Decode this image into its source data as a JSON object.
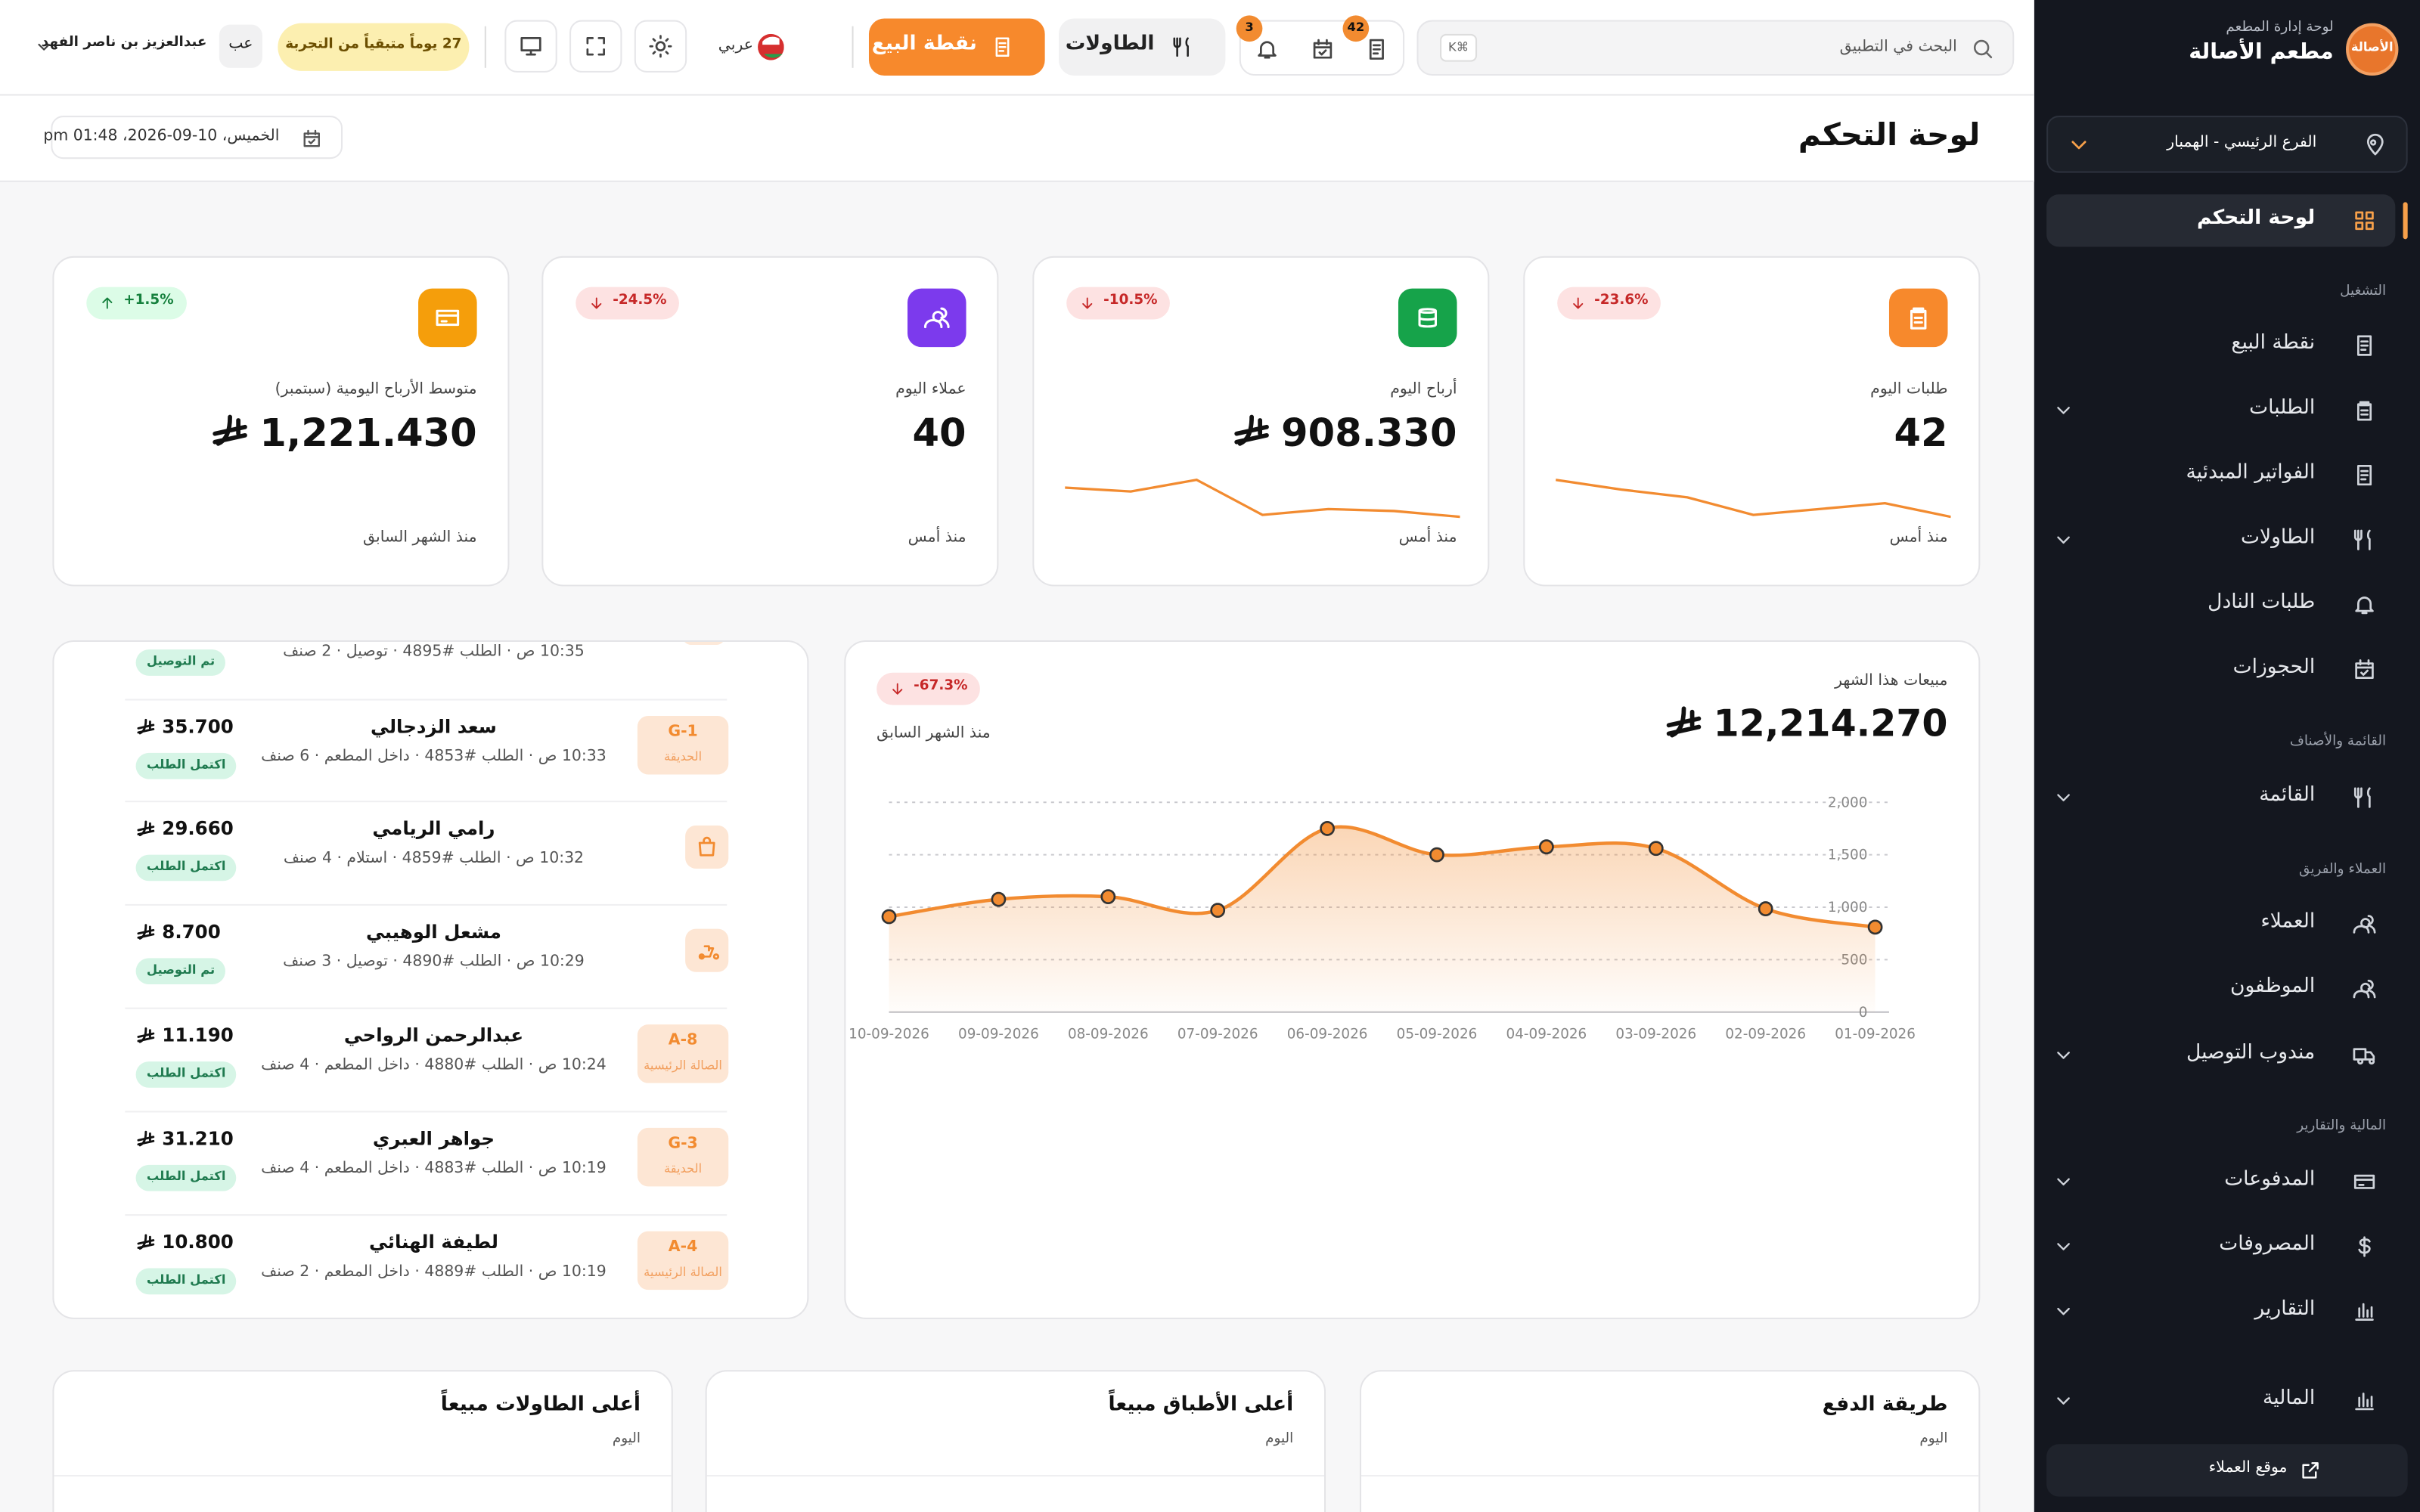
{
  "sidebar": {
    "logo": "الأصالة",
    "subtitle": "لوحة إدارة المطعم",
    "name": "مطعم الأصالة",
    "branch": "الفرع الرئيسي - الهمبار",
    "active": "لوحة التحكم",
    "sections": [
      {
        "label": "التشغيل",
        "items": [
          "نقطة البيع",
          "الطلبات",
          "الفواتير المبدئية",
          "الطاولات",
          "طلبات النادل",
          "الحجوزات"
        ]
      },
      {
        "label": "القائمة والأصناف",
        "items": [
          "القائمة"
        ]
      },
      {
        "label": "العملاء والفريق",
        "items": [
          "العملاء",
          "الموظفون",
          "مندوب التوصيل"
        ]
      },
      {
        "label": "المالية والتقارير",
        "items": [
          "المدفوعات",
          "المصروفات",
          "التقارير",
          "المالية"
        ]
      }
    ],
    "footer": "موقع العملاء"
  },
  "topbar": {
    "search": "البحث في التطبيق",
    "shortcut": "K⌘",
    "badges": [
      42,
      3
    ],
    "tables_button": "الطاولات",
    "pos_button": "نقطة البيع",
    "language": "عربي",
    "trial": "27 يوماً متبقياً من التجربة",
    "avatar": "عب",
    "user": "عبدالعزيز بن ناصر الفهد"
  },
  "header": {
    "title": "لوحة التحكم",
    "date": "الخميس، 10-09-2026، 01:48 pm"
  },
  "stats": [
    {
      "label": "طلبات اليوم",
      "value": "42",
      "change": "-23.6%",
      "note": "منذ أمس",
      "trend": [
        28,
        23,
        19,
        10,
        13,
        16,
        9
      ]
    },
    {
      "label": "أرباح اليوم",
      "value": "908.330",
      "change": "-10.5%",
      "note": "منذ أمس",
      "trend": [
        23,
        21,
        27,
        9,
        12,
        11,
        8
      ]
    },
    {
      "label": "عملاء اليوم",
      "value": "40",
      "change": "-24.5%",
      "note": "منذ أمس"
    },
    {
      "label": "متوسط الأرباح اليومية (سبتمبر)",
      "value": "1,221.430",
      "change": "+1.5%",
      "note": "منذ الشهر السابق"
    }
  ],
  "chart_data": {
    "type": "area",
    "title": "مبيعات هذا الشهر",
    "value": "12,214.270",
    "change": "-67.3%",
    "note": "منذ الشهر السابق",
    "categories": [
      "01-09-2026",
      "02-09-2026",
      "03-09-2026",
      "04-09-2026",
      "05-09-2026",
      "06-09-2026",
      "07-09-2026",
      "08-09-2026",
      "09-09-2026",
      "10-09-2026"
    ],
    "values": [
      810,
      985,
      1560,
      1575,
      1500,
      1750,
      970,
      1100,
      1075,
      910
    ],
    "color": "#f28b30",
    "ylim": [
      0,
      2000
    ],
    "yticks": [
      0,
      500,
      {
        "value": 1000,
        "label": "1,000"
      },
      {
        "value": 1500,
        "label": "1,500"
      },
      {
        "value": 2000,
        "label": "2,000"
      }
    ],
    "grid": true
  },
  "orders": {
    "partial": {
      "meta": "10:35 ص · الطلب #4895 · توصيل · 2 صنف",
      "status": "تم التوصيل"
    },
    "rows": [
      {
        "name": "سعد الزدجالي",
        "meta": "10:33 ص · الطلب #4853 · داخل المطعم · 6 صنف",
        "amount": "35.700",
        "status": "اكتمل الطلب",
        "table": "G-1",
        "area": "الحديقة"
      },
      {
        "name": "رامي الريامي",
        "meta": "10:32 ص · الطلب #4859 · استلام · 4 صنف",
        "amount": "29.660",
        "status": "اكتمل الطلب"
      },
      {
        "name": "مشعل الوهيبي",
        "meta": "10:29 ص · الطلب #4890 · توصيل · 3 صنف",
        "amount": "8.700",
        "status": "تم التوصيل"
      },
      {
        "name": "عبدالرحمن الرواحي",
        "meta": "10:24 ص · الطلب #4880 · داخل المطعم · 4 صنف",
        "amount": "11.190",
        "status": "اكتمل الطلب",
        "table": "A-8",
        "area": "الصالة الرئيسية"
      },
      {
        "name": "جواهر العبري",
        "meta": "10:19 ص · الطلب #4883 · داخل المطعم · 4 صنف",
        "amount": "31.210",
        "status": "اكتمل الطلب",
        "table": "G-3",
        "area": "الحديقة"
      },
      {
        "name": "لطيفة الهنائي",
        "meta": "10:19 ص · الطلب #4889 · داخل المطعم · 2 صنف",
        "amount": "10.800",
        "status": "اكتمل الطلب",
        "table": "A-4",
        "area": "الصالة الرئيسية"
      }
    ]
  },
  "bottom_cards": [
    {
      "title": "طريقة الدفع",
      "subtitle": "اليوم"
    },
    {
      "title": "أعلى الأطباق مبيعاً",
      "subtitle": "اليوم"
    },
    {
      "title": "أعلى الطاولات مبيعاً",
      "subtitle": "اليوم"
    }
  ]
}
